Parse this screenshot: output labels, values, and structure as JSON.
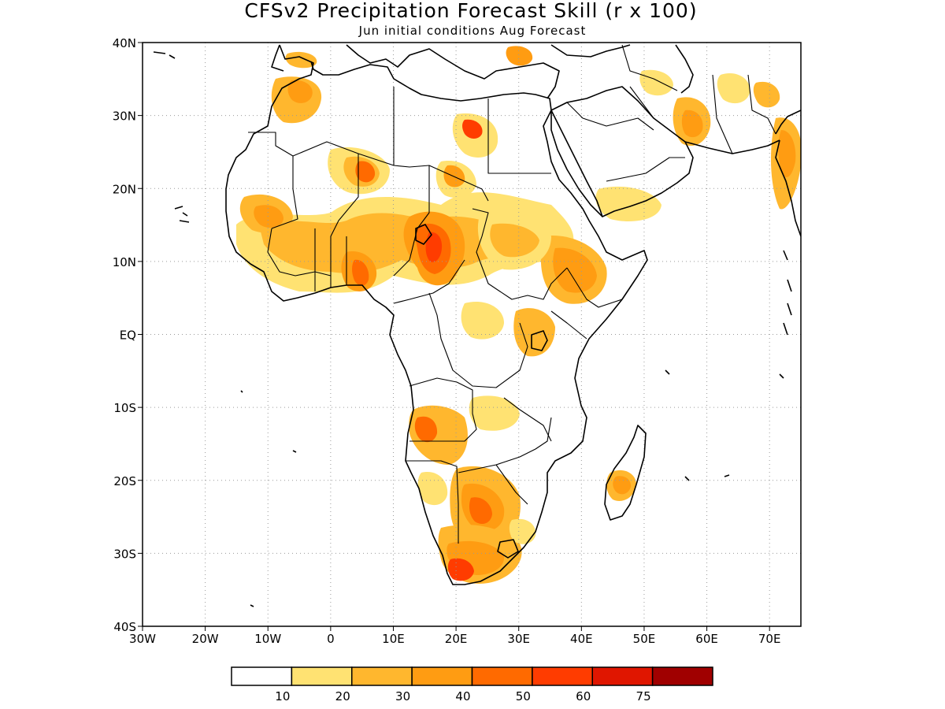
{
  "title": "CFSv2 Precipitation Forecast Skill (r x 100)",
  "subtitle": "Jun initial conditions  Aug Forecast",
  "map": {
    "lon_range": [
      -30,
      75
    ],
    "lat_range": [
      -40,
      40
    ],
    "lon_ticks": [
      {
        "value": -30,
        "label": "30W"
      },
      {
        "value": -20,
        "label": "20W"
      },
      {
        "value": -10,
        "label": "10W"
      },
      {
        "value": 0,
        "label": "0"
      },
      {
        "value": 10,
        "label": "10E"
      },
      {
        "value": 20,
        "label": "20E"
      },
      {
        "value": 30,
        "label": "30E"
      },
      {
        "value": 40,
        "label": "40E"
      },
      {
        "value": 50,
        "label": "50E"
      },
      {
        "value": 60,
        "label": "60E"
      },
      {
        "value": 70,
        "label": "70E"
      }
    ],
    "lat_ticks": [
      {
        "value": 40,
        "label": "40N"
      },
      {
        "value": 30,
        "label": "30N"
      },
      {
        "value": 20,
        "label": "20N"
      },
      {
        "value": 10,
        "label": "10N"
      },
      {
        "value": 0,
        "label": "EQ"
      },
      {
        "value": -10,
        "label": "10S"
      },
      {
        "value": -20,
        "label": "20S"
      },
      {
        "value": -30,
        "label": "30S"
      },
      {
        "value": -40,
        "label": "40S"
      }
    ],
    "grid": true
  },
  "colorbar": {
    "colors": [
      "#ffffff",
      "#ffe272",
      "#ffb72e",
      "#ff9c12",
      "#ff6a00",
      "#ff3c00",
      "#e01600",
      "#a00000"
    ],
    "labels": [
      "10",
      "20",
      "30",
      "40",
      "50",
      "60",
      "75"
    ]
  },
  "skill_regions": [
    {
      "lon": 16,
      "lat": 14,
      "rx": 3.5,
      "ry": 2.5,
      "level": 4
    },
    {
      "lon": 16,
      "lat": 9,
      "rx": 3,
      "ry": 2,
      "level": 4
    },
    {
      "lon": 5,
      "lat": 22,
      "rx": 2,
      "ry": 1.5,
      "level": 5
    },
    {
      "lon": 22,
      "lat": 28,
      "rx": 1.5,
      "ry": 1,
      "level": 5
    },
    {
      "lon": 38,
      "lat": 9,
      "rx": 3.5,
      "ry": 3,
      "level": 4
    },
    {
      "lon": 23,
      "lat": -25,
      "rx": 2.5,
      "ry": 2,
      "level": 4
    },
    {
      "lon": 20,
      "lat": -33,
      "rx": 1.5,
      "ry": 1,
      "level": 5
    },
    {
      "lon": 13,
      "lat": -13,
      "rx": 1.5,
      "ry": 1.5,
      "level": 4
    },
    {
      "lon": 5,
      "lat": 7,
      "rx": 2,
      "ry": 1.5,
      "level": 4
    },
    {
      "lon": 59,
      "lat": 31,
      "rx": 1.5,
      "ry": 2,
      "level": 3
    },
    {
      "lon": 46,
      "lat": -21,
      "rx": 1.5,
      "ry": 1.5,
      "level": 3
    }
  ]
}
